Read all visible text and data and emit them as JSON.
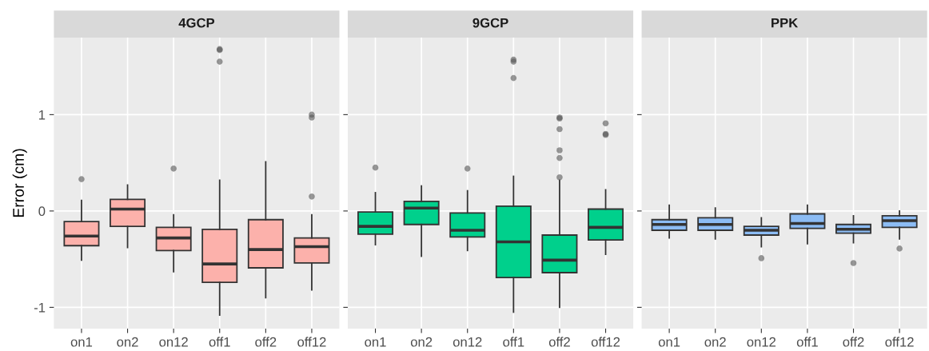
{
  "chart_data": [
    {
      "type": "box",
      "title": "4GCP",
      "ylabel": "Error (cm)",
      "categories": [
        "on1",
        "on2",
        "on12",
        "off1",
        "off2",
        "off12"
      ],
      "color": "#fcb1ab",
      "ylim": [
        -1.22,
        1.8
      ],
      "yticks": [
        -1,
        0,
        1
      ],
      "grid": true,
      "boxes": [
        {
          "low": -0.51,
          "q1": -0.36,
          "median": -0.26,
          "q3": -0.11,
          "high": 0.11,
          "outliers": [
            0.33
          ]
        },
        {
          "low": -0.38,
          "q1": -0.16,
          "median": 0.02,
          "q3": 0.12,
          "high": 0.27
        },
        {
          "low": -0.63,
          "q1": -0.41,
          "median": -0.28,
          "q3": -0.17,
          "high": -0.04,
          "outliers": [
            0.44
          ]
        },
        {
          "low": -1.08,
          "q1": -0.74,
          "median": -0.55,
          "q3": -0.19,
          "high": 0.32,
          "outliers": [
            1.68,
            1.67,
            1.55
          ]
        },
        {
          "low": -0.9,
          "q1": -0.59,
          "median": -0.4,
          "q3": -0.09,
          "high": 0.51
        },
        {
          "low": -0.82,
          "q1": -0.54,
          "median": -0.37,
          "q3": -0.28,
          "high": -0.04,
          "outliers": [
            1.0,
            0.97,
            0.15
          ]
        }
      ]
    },
    {
      "type": "box",
      "title": "9GCP",
      "categories": [
        "on1",
        "on2",
        "on12",
        "off1",
        "off2",
        "off12"
      ],
      "color": "#00d08c",
      "ylim": [
        -1.22,
        1.8
      ],
      "yticks": [
        -1,
        0,
        1
      ],
      "grid": true,
      "tick_labels": "x",
      "boxes": [
        {
          "low": -0.35,
          "q1": -0.24,
          "median": -0.16,
          "q3": -0.01,
          "high": 0.19,
          "outliers": [
            0.45
          ]
        },
        {
          "low": -0.47,
          "q1": -0.14,
          "median": 0.03,
          "q3": 0.1,
          "high": 0.26
        },
        {
          "low": -0.41,
          "q1": -0.27,
          "median": -0.2,
          "q3": -0.02,
          "high": 0.21,
          "outliers": [
            0.44
          ]
        },
        {
          "low": -1.05,
          "q1": -0.69,
          "median": -0.32,
          "q3": 0.05,
          "high": 0.36,
          "outliers": [
            1.57,
            1.55,
            1.38
          ]
        },
        {
          "low": -1.0,
          "q1": -0.64,
          "median": -0.51,
          "q3": -0.25,
          "high": 0.32,
          "outliers": [
            0.97,
            0.96,
            0.85,
            0.63,
            0.55,
            0.35
          ]
        },
        {
          "low": -0.45,
          "q1": -0.3,
          "median": -0.17,
          "q3": 0.02,
          "high": 0.22,
          "outliers": [
            0.91,
            0.8,
            0.79
          ]
        }
      ]
    },
    {
      "type": "box",
      "title": "PPK",
      "categories": [
        "on1",
        "on2",
        "on12",
        "off1",
        "off2",
        "off12"
      ],
      "color": "#8cbcf4",
      "ylim": [
        -1.22,
        1.8
      ],
      "yticks": [
        -1,
        0,
        1
      ],
      "grid": true,
      "tick_labels": "x",
      "boxes": [
        {
          "low": -0.28,
          "q1": -0.2,
          "median": -0.14,
          "q3": -0.09,
          "high": 0.06
        },
        {
          "low": -0.29,
          "q1": -0.2,
          "median": -0.14,
          "q3": -0.07,
          "high": 0.03
        },
        {
          "low": -0.37,
          "q1": -0.25,
          "median": -0.2,
          "q3": -0.16,
          "high": -0.07,
          "outliers": [
            -0.49
          ]
        },
        {
          "low": -0.34,
          "q1": -0.18,
          "median": -0.13,
          "q3": -0.03,
          "high": 0.06
        },
        {
          "low": -0.33,
          "q1": -0.23,
          "median": -0.19,
          "q3": -0.14,
          "high": -0.05,
          "outliers": [
            -0.54
          ]
        },
        {
          "low": -0.29,
          "q1": -0.17,
          "median": -0.1,
          "q3": -0.05,
          "high": 0.0,
          "outliers": [
            -0.39
          ]
        }
      ]
    }
  ]
}
